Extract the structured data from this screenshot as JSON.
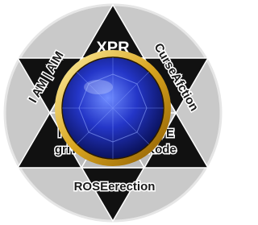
{
  "emblem": {
    "labels": {
      "top": "XPR",
      "upper_right": "CurseAfction",
      "upper_left": "I AM | AIM",
      "bottom": "ROSEerection",
      "left_line1": "I",
      "left_line2": "griT",
      "right_line1": "VE",
      "right_line2": "Kode"
    }
  }
}
